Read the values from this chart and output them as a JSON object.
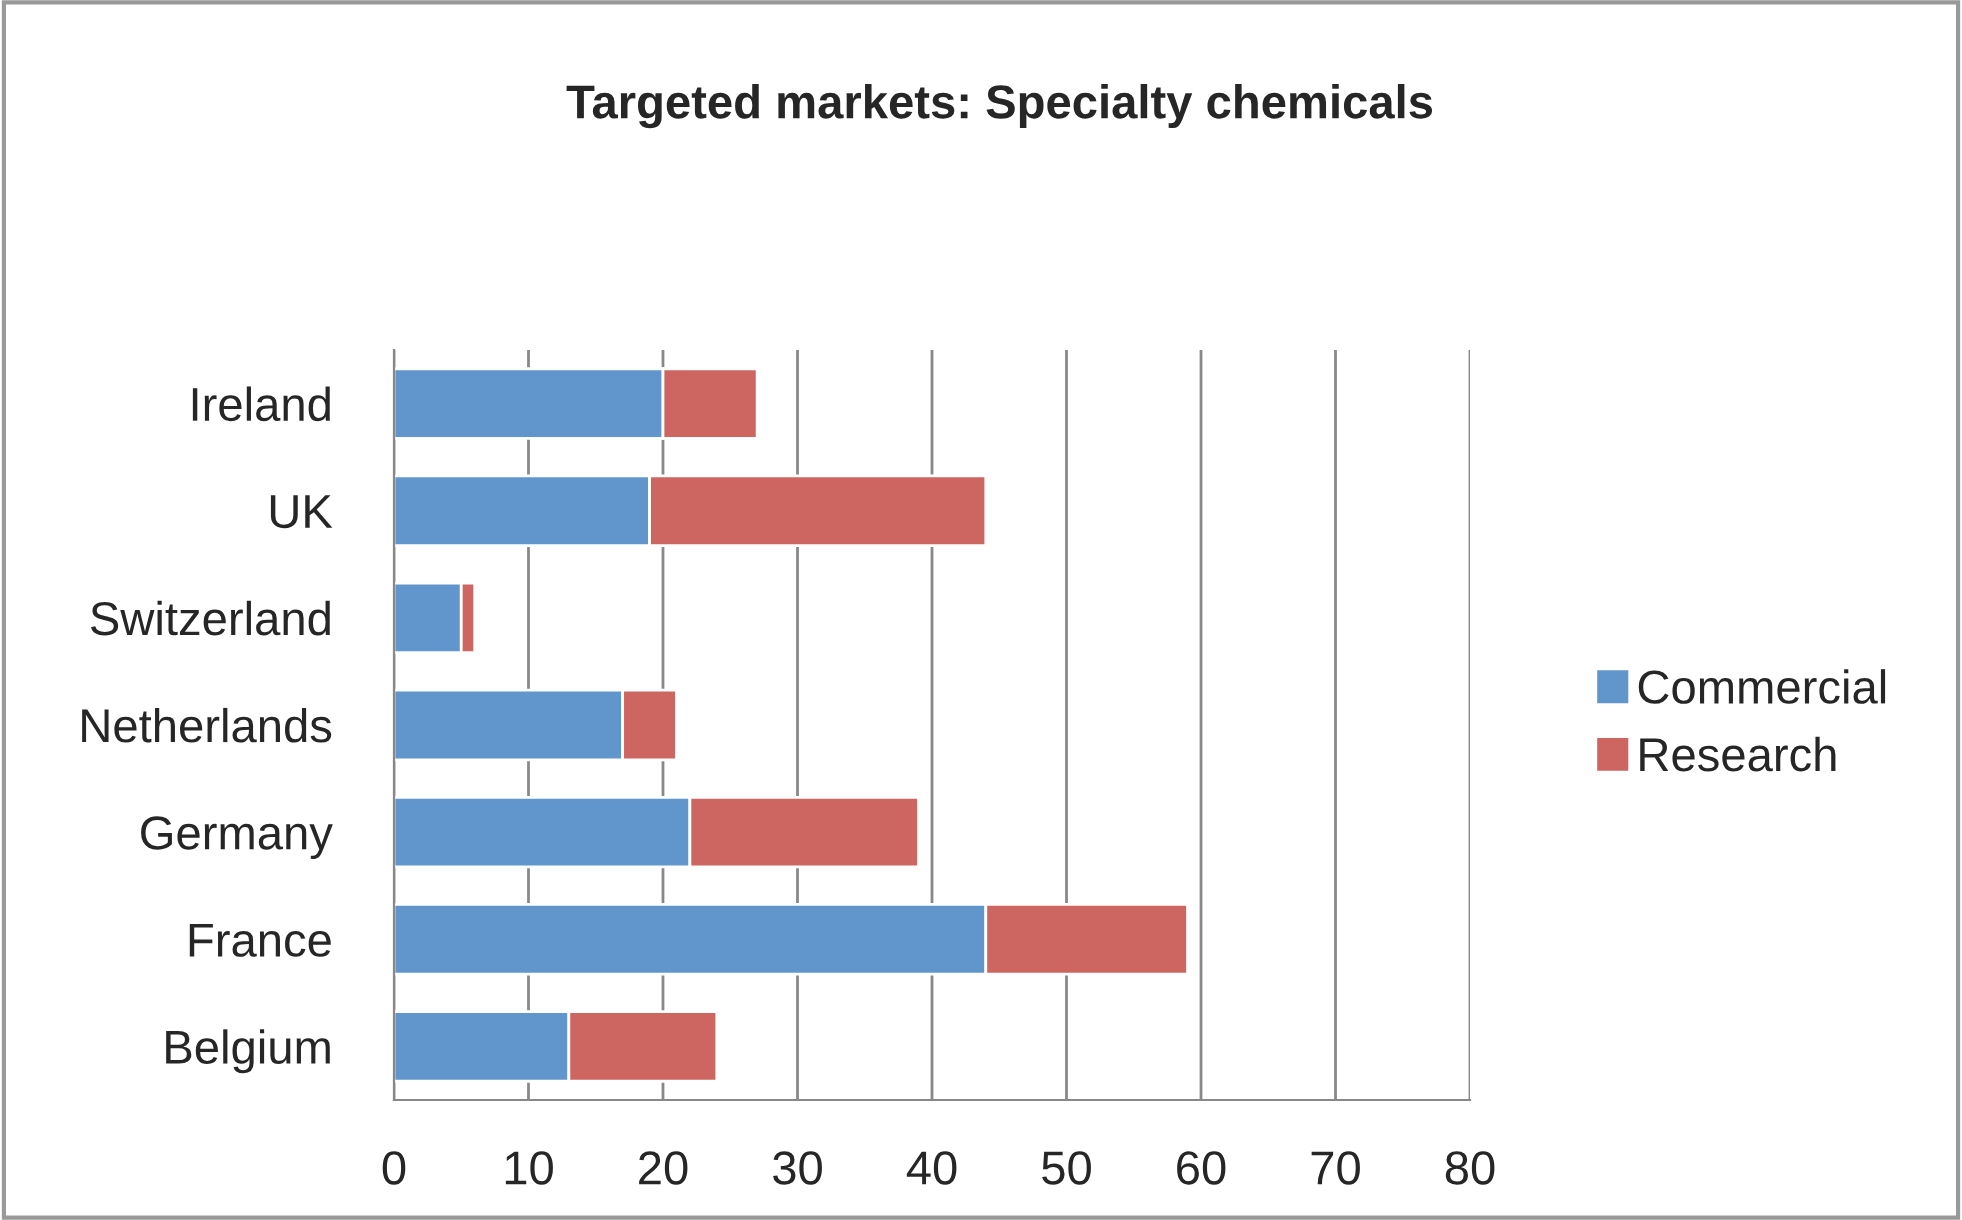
{
  "chart_data": {
    "type": "bar",
    "title": "Targeted markets: Specialty chemicals",
    "orientation": "horizontal",
    "stacked": true,
    "categories": [
      "Ireland",
      "UK",
      "Switzerland",
      "Netherlands",
      "Germany",
      "France",
      "Belgium"
    ],
    "series": [
      {
        "name": "Commercial",
        "color": "#6096cc",
        "values": [
          20,
          19,
          5,
          17,
          22,
          44,
          13
        ]
      },
      {
        "name": "Research",
        "color": "#cd6560",
        "values": [
          7,
          25,
          1,
          4,
          17,
          15,
          11
        ]
      }
    ],
    "xlim": [
      0,
      80
    ],
    "xticks": [
      0,
      10,
      20,
      30,
      40,
      50,
      60,
      70,
      80
    ],
    "grid": "x",
    "legend": "right"
  }
}
